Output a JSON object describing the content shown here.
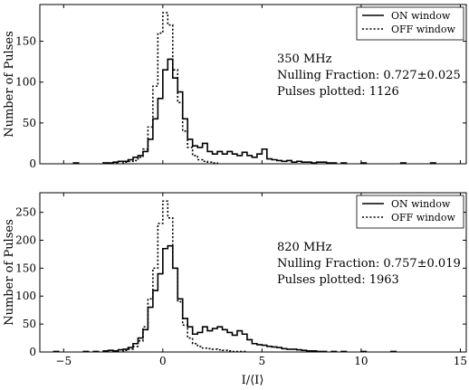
{
  "chart_data": [
    {
      "type": "histogram",
      "xlim": [
        -6.2,
        15.3
      ],
      "ylim": [
        0,
        195
      ],
      "xticks": [
        -5,
        0,
        5,
        10,
        15
      ],
      "yticks": [
        0,
        50,
        100,
        150
      ],
      "xtick_labels": [
        "",
        "",
        "",
        "",
        ""
      ],
      "ytick_labels": [
        "0",
        "50",
        "100",
        "150"
      ],
      "xlabel": "",
      "ylabel": "Number of Pulses",
      "legend": {
        "placement": "top-right",
        "entries": [
          "ON window",
          "OFF window"
        ]
      },
      "annotations": {
        "freq": "350 MHz",
        "nulling": "Nulling Fraction: 0.727±0.025",
        "pulses": "Pulses plotted: 1126"
      },
      "bin_width": 0.25,
      "series": [
        {
          "name": "ON window",
          "style": "solid",
          "points": [
            [
              -4.5,
              1
            ],
            [
              -3.0,
              1
            ],
            [
              -2.75,
              1
            ],
            [
              -2.5,
              2
            ],
            [
              -2.25,
              3
            ],
            [
              -2.0,
              3
            ],
            [
              -1.75,
              5
            ],
            [
              -1.5,
              8
            ],
            [
              -1.25,
              10
            ],
            [
              -1.0,
              15
            ],
            [
              -0.75,
              30
            ],
            [
              -0.5,
              55
            ],
            [
              -0.25,
              80
            ],
            [
              0.0,
              115
            ],
            [
              0.25,
              128
            ],
            [
              0.5,
              105
            ],
            [
              0.75,
              88
            ],
            [
              1.0,
              55
            ],
            [
              1.25,
              30
            ],
            [
              1.5,
              22
            ],
            [
              1.75,
              20
            ],
            [
              2.0,
              25
            ],
            [
              2.25,
              15
            ],
            [
              2.5,
              12
            ],
            [
              2.75,
              15
            ],
            [
              3.0,
              12
            ],
            [
              3.25,
              15
            ],
            [
              3.5,
              12
            ],
            [
              3.75,
              10
            ],
            [
              4.0,
              14
            ],
            [
              4.25,
              10
            ],
            [
              4.5,
              8
            ],
            [
              4.75,
              12
            ],
            [
              5.0,
              18
            ],
            [
              5.25,
              6
            ],
            [
              5.5,
              5
            ],
            [
              5.75,
              4
            ],
            [
              6.0,
              3
            ],
            [
              6.25,
              4
            ],
            [
              6.5,
              2
            ],
            [
              6.75,
              3
            ],
            [
              7.0,
              2
            ],
            [
              7.25,
              2
            ],
            [
              7.5,
              1
            ],
            [
              7.75,
              2
            ],
            [
              8.0,
              2
            ],
            [
              8.25,
              1
            ],
            [
              8.5,
              1
            ],
            [
              9.0,
              1
            ],
            [
              10.0,
              1
            ],
            [
              12.0,
              1
            ],
            [
              13.5,
              1
            ]
          ]
        },
        {
          "name": "OFF window",
          "style": "dotted",
          "points": [
            [
              -3.0,
              1
            ],
            [
              -2.5,
              1
            ],
            [
              -2.0,
              2
            ],
            [
              -1.75,
              3
            ],
            [
              -1.5,
              4
            ],
            [
              -1.25,
              8
            ],
            [
              -1.0,
              18
            ],
            [
              -0.75,
              45
            ],
            [
              -0.5,
              95
            ],
            [
              -0.25,
              160
            ],
            [
              0.0,
              185
            ],
            [
              0.25,
              170
            ],
            [
              0.5,
              115
            ],
            [
              0.75,
              75
            ],
            [
              1.0,
              40
            ],
            [
              1.25,
              20
            ],
            [
              1.5,
              10
            ],
            [
              1.75,
              5
            ],
            [
              2.0,
              3
            ],
            [
              2.25,
              2
            ],
            [
              2.5,
              1
            ]
          ]
        }
      ]
    },
    {
      "type": "histogram",
      "xlim": [
        -6.2,
        15.3
      ],
      "ylim": [
        0,
        285
      ],
      "xticks": [
        -5,
        0,
        5,
        10,
        15
      ],
      "yticks": [
        0,
        50,
        100,
        150,
        200,
        250
      ],
      "xtick_labels": [
        "−5",
        "0",
        "5",
        "10",
        "15"
      ],
      "ytick_labels": [
        "0",
        "50",
        "100",
        "150",
        "200",
        "250"
      ],
      "xlabel": "I/⟨I⟩",
      "ylabel": "Number of Pulses",
      "legend": {
        "placement": "top-right",
        "entries": [
          "ON window",
          "OFF window"
        ]
      },
      "annotations": {
        "freq": "820 MHz",
        "nulling": "Nulling Fraction: 0.757±0.019",
        "pulses": "Pulses plotted: 1963"
      },
      "bin_width": 0.25,
      "series": [
        {
          "name": "ON window",
          "style": "solid",
          "points": [
            [
              -5.5,
              1
            ],
            [
              -4.0,
              1
            ],
            [
              -3.5,
              1
            ],
            [
              -3.0,
              2
            ],
            [
              -2.75,
              3
            ],
            [
              -2.5,
              2
            ],
            [
              -2.25,
              4
            ],
            [
              -2.0,
              5
            ],
            [
              -1.75,
              8
            ],
            [
              -1.5,
              15
            ],
            [
              -1.25,
              25
            ],
            [
              -1.0,
              40
            ],
            [
              -0.75,
              80
            ],
            [
              -0.5,
              110
            ],
            [
              -0.25,
              140
            ],
            [
              0.0,
              185
            ],
            [
              0.25,
              190
            ],
            [
              0.5,
              150
            ],
            [
              0.75,
              95
            ],
            [
              1.0,
              60
            ],
            [
              1.25,
              45
            ],
            [
              1.5,
              32
            ],
            [
              1.75,
              35
            ],
            [
              2.0,
              45
            ],
            [
              2.25,
              38
            ],
            [
              2.5,
              42
            ],
            [
              2.75,
              45
            ],
            [
              3.0,
              40
            ],
            [
              3.25,
              35
            ],
            [
              3.5,
              30
            ],
            [
              3.75,
              38
            ],
            [
              4.0,
              32
            ],
            [
              4.25,
              22
            ],
            [
              4.5,
              15
            ],
            [
              4.75,
              13
            ],
            [
              5.0,
              12
            ],
            [
              5.25,
              10
            ],
            [
              5.5,
              9
            ],
            [
              5.75,
              8
            ],
            [
              6.0,
              6
            ],
            [
              6.25,
              5
            ],
            [
              6.5,
              5
            ],
            [
              6.75,
              4
            ],
            [
              7.0,
              3
            ],
            [
              7.25,
              2
            ],
            [
              7.5,
              2
            ],
            [
              7.75,
              1
            ],
            [
              8.0,
              1
            ],
            [
              8.5,
              1
            ],
            [
              9.0,
              1
            ],
            [
              10.0,
              1
            ],
            [
              11.5,
              1
            ]
          ]
        },
        {
          "name": "OFF window",
          "style": "dotted",
          "points": [
            [
              -2.5,
              1
            ],
            [
              -2.0,
              3
            ],
            [
              -1.75,
              5
            ],
            [
              -1.5,
              10
            ],
            [
              -1.25,
              20
            ],
            [
              -1.0,
              45
            ],
            [
              -0.75,
              95
            ],
            [
              -0.5,
              150
            ],
            [
              -0.25,
              230
            ],
            [
              0.0,
              270
            ],
            [
              0.25,
              240
            ],
            [
              0.5,
              150
            ],
            [
              0.75,
              90
            ],
            [
              1.0,
              48
            ],
            [
              1.25,
              25
            ],
            [
              1.5,
              15
            ],
            [
              1.75,
              10
            ],
            [
              2.0,
              7
            ],
            [
              2.25,
              6
            ],
            [
              2.5,
              5
            ],
            [
              2.75,
              4
            ],
            [
              3.0,
              3
            ],
            [
              3.25,
              2
            ],
            [
              3.5,
              1
            ],
            [
              3.75,
              1
            ],
            [
              4.0,
              1
            ]
          ]
        }
      ]
    }
  ]
}
